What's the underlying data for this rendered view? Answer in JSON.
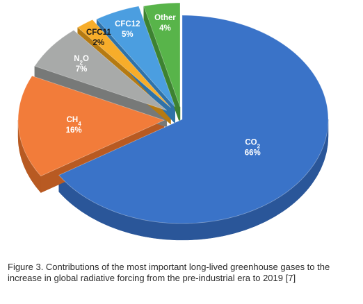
{
  "chart_data": {
    "type": "pie",
    "style": "3d-exploded",
    "slices": [
      {
        "label": "CO2",
        "base": "CO",
        "sub": "2",
        "value": 66,
        "percent_label": "66%",
        "color": "#3a73c8",
        "side_color": "#2a5699",
        "label_tone": "light"
      },
      {
        "label": "CH4",
        "base": "CH",
        "sub": "4",
        "value": 16,
        "percent_label": "16%",
        "color": "#f27c3a",
        "side_color": "#b85a22",
        "label_tone": "light"
      },
      {
        "label": "N2O",
        "base": "N",
        "sub": "2",
        "tail": "O",
        "value": 7,
        "percent_label": "7%",
        "color": "#a8aaa9",
        "side_color": "#777978",
        "label_tone": "light"
      },
      {
        "label": "CFC11",
        "base": "CFC11",
        "value": 2,
        "percent_label": "2%",
        "color": "#f7ad2a",
        "side_color": "#b57a12",
        "label_tone": "dark"
      },
      {
        "label": "CFC12",
        "base": "CFC12",
        "value": 5,
        "percent_label": "5%",
        "color": "#4b9ee0",
        "side_color": "#2f72a8",
        "label_tone": "light"
      },
      {
        "label": "Other",
        "base": "Other",
        "value": 4,
        "percent_label": "4%",
        "color": "#58b44a",
        "side_color": "#3d8231",
        "label_tone": "light"
      }
    ]
  },
  "caption": "Figure 3. Contributions of the most important long-lived greenhouse gases to the increase in global radiative forcing from the pre-industrial era to 2019 [7]"
}
